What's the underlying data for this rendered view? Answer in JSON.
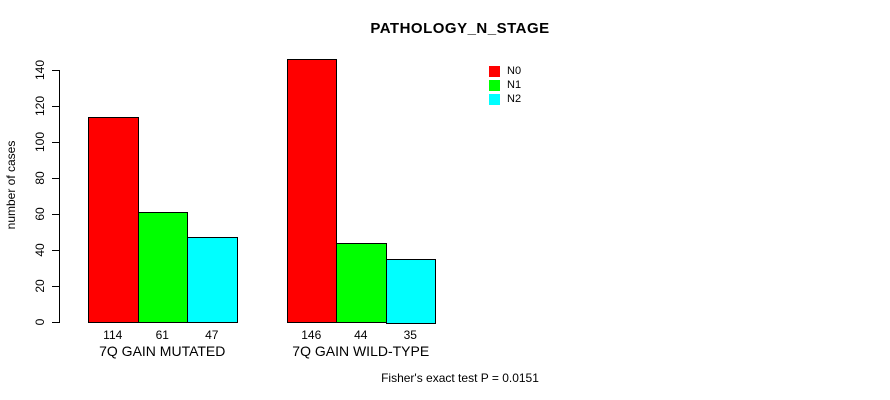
{
  "title": "PATHOLOGY_N_STAGE",
  "footer": "Fisher's exact test P = 0.0151",
  "chart_data": {
    "type": "bar",
    "title": "PATHOLOGY_N_STAGE",
    "xlabel": "",
    "ylabel": "number of cases",
    "ylim": [
      0,
      140
    ],
    "yticks": [
      0,
      20,
      40,
      60,
      80,
      100,
      120,
      140
    ],
    "grid": false,
    "legend_position": "top-right",
    "categories": [
      "7Q GAIN MUTATED",
      "7Q GAIN WILD-TYPE"
    ],
    "series": [
      {
        "name": "N0",
        "color": "#ff0000",
        "values": [
          114,
          146
        ]
      },
      {
        "name": "N1",
        "color": "#00ff00",
        "values": [
          61,
          44
        ]
      },
      {
        "name": "N2",
        "color": "#00ffff",
        "values": [
          47,
          35
        ]
      }
    ],
    "bar_value_labels": [
      [
        114,
        61,
        47
      ],
      [
        146,
        44,
        35
      ]
    ],
    "annotation": "Fisher's exact test P = 0.0151"
  },
  "colors": {
    "background": "#ffffff",
    "axis": "#000000",
    "bar_border": "#000000",
    "text": "#000000"
  }
}
